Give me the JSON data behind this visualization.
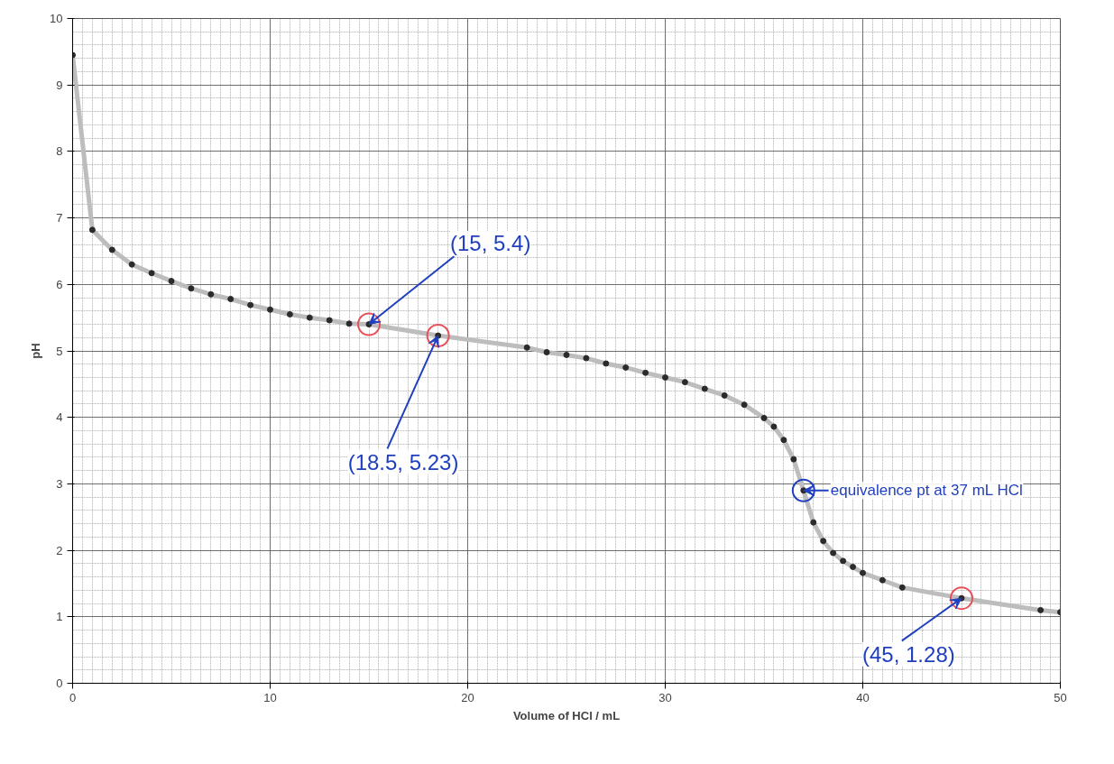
{
  "chart_data": {
    "type": "scatter",
    "xlabel": "Volume of HCl / mL",
    "ylabel": "pH",
    "x": [
      0,
      1,
      2,
      3,
      4,
      5,
      6,
      7,
      8,
      9,
      10,
      11,
      12,
      13,
      14,
      15,
      18.5,
      23,
      24,
      25,
      26,
      27,
      28,
      29,
      30,
      31,
      32,
      33,
      34,
      35,
      35.5,
      36,
      36.5,
      37,
      37.5,
      38,
      38.5,
      39,
      39.5,
      40,
      41,
      42,
      45,
      49,
      50
    ],
    "series": [
      {
        "type": "line",
        "color": "#bdbdbd",
        "values": [
          9.45,
          6.82,
          6.52,
          6.3,
          6.17,
          6.05,
          5.94,
          5.85,
          5.78,
          5.69,
          5.62,
          5.55,
          5.5,
          5.46,
          5.41,
          5.4,
          5.23,
          5.05,
          4.98,
          4.94,
          4.89,
          4.81,
          4.75,
          4.67,
          4.6,
          4.53,
          4.43,
          4.33,
          4.19,
          3.99,
          3.86,
          3.66,
          3.37,
          2.9,
          2.42,
          2.14,
          1.96,
          1.84,
          1.75,
          1.66,
          1.55,
          1.44,
          1.28,
          1.1,
          1.07
        ]
      },
      {
        "color": "#2b2b2b",
        "marker": "circle",
        "values": [
          9.45,
          6.82,
          6.52,
          6.3,
          6.17,
          6.05,
          5.94,
          5.85,
          5.78,
          5.69,
          5.62,
          5.55,
          5.5,
          5.46,
          5.41,
          5.4,
          5.23,
          5.05,
          4.98,
          4.94,
          4.89,
          4.81,
          4.75,
          4.67,
          4.6,
          4.53,
          4.43,
          4.33,
          4.19,
          3.99,
          3.86,
          3.66,
          3.37,
          2.9,
          2.42,
          2.14,
          1.96,
          1.84,
          1.75,
          1.66,
          1.55,
          1.44,
          1.28,
          1.1,
          1.07
        ]
      }
    ],
    "xlim": [
      0,
      50
    ],
    "xticks": [
      0,
      10,
      20,
      30,
      40,
      50
    ],
    "ylim": [
      0,
      10
    ],
    "yticks": [
      0,
      1,
      2,
      3,
      4,
      5,
      6,
      7,
      8,
      9,
      10
    ],
    "grid": true,
    "annotations": [
      {
        "text": "(15, 5.4)",
        "x": 15,
        "y": 5.4
      },
      {
        "text": "(18.5, 5.23)",
        "x": 18.5,
        "y": 5.23
      },
      {
        "text": "equivalence pt at 37 mL HCl",
        "x": 37,
        "y": 2.9
      },
      {
        "text": "(45, 1.28)",
        "x": 45,
        "y": 1.28
      }
    ]
  }
}
